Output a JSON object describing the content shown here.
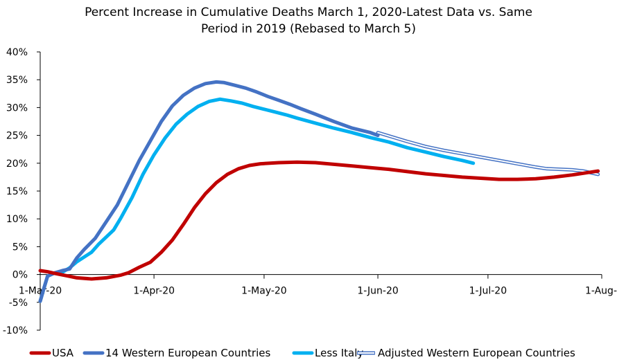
{
  "chart_data": {
    "type": "line",
    "title_lines": [
      "Percent Increase in Cumulative Deaths March 1, 2020-Latest Data vs. Same",
      "Period in 2019 (Rebased to March 5)"
    ],
    "x_tick_labels": [
      "1-Mar-20",
      "1-Apr-20",
      "1-May-20",
      "1-Jun-20",
      "1-Jul-20",
      "1-Aug-"
    ],
    "x_tick_days": [
      0,
      31,
      61,
      92,
      122,
      153
    ],
    "xlim": [
      0,
      153
    ],
    "y_tick_labels": [
      "-10%",
      "-5%",
      "0%",
      "5%",
      "10%",
      "15%",
      "20%",
      "25%",
      "30%",
      "35%",
      "40%"
    ],
    "y_tick_values": [
      -10,
      -5,
      0,
      5,
      10,
      15,
      20,
      25,
      30,
      35,
      40
    ],
    "ylim": [
      -10,
      40
    ],
    "grid": false,
    "legend_position": "bottom",
    "series": [
      {
        "name": "Adjusted Western European Countries",
        "color": "#4472C4",
        "style": "double",
        "points": [
          [
            92,
            25.5
          ],
          [
            95,
            24.9
          ],
          [
            100,
            23.9
          ],
          [
            105,
            23.0
          ],
          [
            110,
            22.3
          ],
          [
            115,
            21.7
          ],
          [
            120,
            21.1
          ],
          [
            125,
            20.5
          ],
          [
            130,
            19.9
          ],
          [
            135,
            19.3
          ],
          [
            138,
            19.0
          ],
          [
            145,
            18.8
          ],
          [
            148,
            18.6
          ],
          [
            150,
            18.3
          ],
          [
            152,
            18.0
          ]
        ]
      },
      {
        "name": "Less Italy",
        "color": "#00B0F0",
        "style": "solid",
        "points": [
          [
            0,
            -4.8
          ],
          [
            1,
            -2.5
          ],
          [
            2,
            -0.3
          ],
          [
            4,
            0.3
          ],
          [
            6,
            0.4
          ],
          [
            8,
            1.2
          ],
          [
            10,
            2.3
          ],
          [
            14,
            4.0
          ],
          [
            16,
            5.5
          ],
          [
            20,
            8.0
          ],
          [
            22,
            10.2
          ],
          [
            25,
            13.8
          ],
          [
            28,
            18.0
          ],
          [
            31,
            21.5
          ],
          [
            34,
            24.5
          ],
          [
            37,
            27.0
          ],
          [
            40,
            28.8
          ],
          [
            43,
            30.2
          ],
          [
            46,
            31.1
          ],
          [
            49,
            31.5
          ],
          [
            52,
            31.2
          ],
          [
            55,
            30.8
          ],
          [
            58,
            30.2
          ],
          [
            61,
            29.7
          ],
          [
            64,
            29.2
          ],
          [
            67,
            28.7
          ],
          [
            70,
            28.1
          ],
          [
            75,
            27.2
          ],
          [
            80,
            26.3
          ],
          [
            85,
            25.5
          ],
          [
            90,
            24.6
          ],
          [
            95,
            23.8
          ],
          [
            100,
            22.8
          ],
          [
            105,
            22.0
          ],
          [
            110,
            21.2
          ],
          [
            115,
            20.5
          ],
          [
            118,
            20.0
          ]
        ]
      },
      {
        "name": "14 Western European Countries",
        "color": "#4472C4",
        "style": "solid",
        "points": [
          [
            0,
            -4.8
          ],
          [
            1,
            -2.5
          ],
          [
            2,
            -0.3
          ],
          [
            4,
            0.3
          ],
          [
            6,
            0.7
          ],
          [
            8,
            1.0
          ],
          [
            10,
            3.0
          ],
          [
            12,
            4.5
          ],
          [
            15,
            6.5
          ],
          [
            18,
            9.5
          ],
          [
            21,
            12.5
          ],
          [
            24,
            16.5
          ],
          [
            27,
            20.5
          ],
          [
            30,
            24.0
          ],
          [
            33,
            27.5
          ],
          [
            36,
            30.3
          ],
          [
            39,
            32.2
          ],
          [
            42,
            33.5
          ],
          [
            45,
            34.3
          ],
          [
            48,
            34.6
          ],
          [
            50,
            34.5
          ],
          [
            53,
            34.0
          ],
          [
            56,
            33.5
          ],
          [
            59,
            32.8
          ],
          [
            62,
            32.0
          ],
          [
            65,
            31.3
          ],
          [
            68,
            30.6
          ],
          [
            71,
            29.8
          ],
          [
            75,
            28.8
          ],
          [
            80,
            27.5
          ],
          [
            85,
            26.3
          ],
          [
            90,
            25.5
          ],
          [
            92,
            25.0
          ]
        ]
      },
      {
        "name": "USA",
        "color": "#C00000",
        "style": "solid",
        "points": [
          [
            0,
            0.7
          ],
          [
            2,
            0.5
          ],
          [
            4,
            0.2
          ],
          [
            7,
            -0.2
          ],
          [
            10,
            -0.6
          ],
          [
            14,
            -0.8
          ],
          [
            18,
            -0.6
          ],
          [
            22,
            -0.1
          ],
          [
            24,
            0.3
          ],
          [
            27,
            1.3
          ],
          [
            30,
            2.2
          ],
          [
            33,
            4.0
          ],
          [
            36,
            6.2
          ],
          [
            39,
            9.0
          ],
          [
            42,
            12.0
          ],
          [
            45,
            14.5
          ],
          [
            48,
            16.5
          ],
          [
            51,
            18.0
          ],
          [
            54,
            19.0
          ],
          [
            57,
            19.6
          ],
          [
            60,
            19.9
          ],
          [
            65,
            20.1
          ],
          [
            70,
            20.2
          ],
          [
            75,
            20.1
          ],
          [
            80,
            19.8
          ],
          [
            85,
            19.5
          ],
          [
            90,
            19.2
          ],
          [
            95,
            18.9
          ],
          [
            100,
            18.5
          ],
          [
            105,
            18.1
          ],
          [
            110,
            17.8
          ],
          [
            115,
            17.5
          ],
          [
            120,
            17.3
          ],
          [
            125,
            17.1
          ],
          [
            130,
            17.1
          ],
          [
            135,
            17.2
          ],
          [
            140,
            17.5
          ],
          [
            145,
            17.9
          ],
          [
            150,
            18.4
          ],
          [
            152,
            18.6
          ]
        ]
      }
    ],
    "legend_entries": [
      {
        "name": "USA",
        "color": "#C00000",
        "style": "solid"
      },
      {
        "name": "14 Western European Countries",
        "color": "#4472C4",
        "style": "solid"
      },
      {
        "name": "Less Italy",
        "color": "#00B0F0",
        "style": "solid"
      },
      {
        "name": "Adjusted Western European Countries",
        "color": "#4472C4",
        "style": "double"
      }
    ]
  }
}
